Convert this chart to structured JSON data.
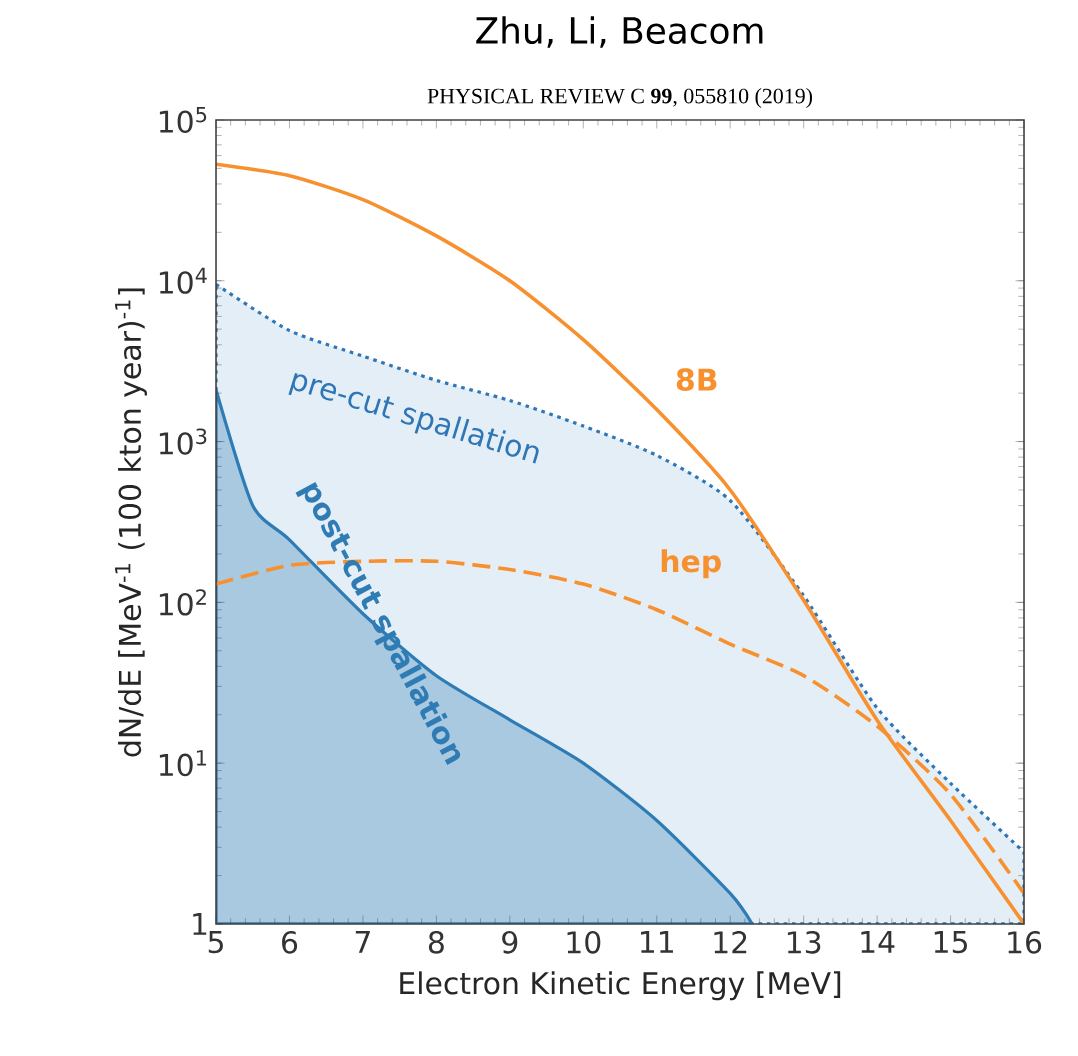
{
  "chart_data": {
    "type": "line",
    "title": "Zhu, Li, Beacom",
    "subtitle": "PHYSICAL REVIEW C **99**, 055810 (2019)",
    "xlabel": "Electron Kinetic Energy [MeV]",
    "ylabel": "dN/dE [MeV$^{-1}$ (100 kton year)$^{-1}$]",
    "log": "y",
    "xlim": [
      5,
      16
    ],
    "ylim": [
      1,
      100000
    ],
    "xticks": [
      5,
      6,
      7,
      8,
      9,
      10,
      11,
      12,
      13,
      14,
      15,
      16
    ],
    "yticks": [
      1,
      {
        "value": 10,
        "label": "10$^{1}$"
      },
      {
        "value": 100,
        "label": "10$^{2}$"
      },
      {
        "value": 1000,
        "label": "10$^{3}$"
      },
      {
        "value": 10000,
        "label": "10$^{4}$"
      },
      {
        "value": 100000,
        "label": "10$^{5}$"
      }
    ],
    "grid": false,
    "marker": "none",
    "series": [
      {
        "name": "pre-cut spallation",
        "type": "area",
        "color": "#e4eef7",
        "line_style": "dotted",
        "x": [
          5,
          6,
          7,
          8,
          9,
          10,
          11,
          12,
          13,
          14,
          15,
          16
        ],
        "values": [
          9500,
          4900,
          3400,
          2400,
          1800,
          1250,
          820,
          430,
          110,
          22,
          7.5,
          2.8
        ]
      },
      {
        "name": "post-cut spallation",
        "type": "area",
        "color": "#a9c9e1",
        "line_style": "solid",
        "x": [
          5,
          5.5,
          6,
          7,
          8,
          9,
          10,
          11,
          12,
          12.3
        ],
        "values": [
          2100,
          400,
          245,
          85,
          35,
          18.6,
          10,
          4.4,
          1.55,
          1
        ]
      },
      {
        "name": "hep",
        "color": "#f7902f",
        "line_style": "dashed",
        "x": [
          5,
          6,
          7,
          8,
          9,
          10,
          11,
          12,
          13,
          14,
          15,
          16
        ],
        "values": [
          130,
          170,
          180,
          180,
          160,
          130,
          90,
          55,
          35,
          17,
          6.4,
          1.55
        ]
      },
      {
        "name": "8B",
        "color": "#f7902f",
        "line_style": "solid",
        "x": [
          5,
          6,
          7,
          8,
          9,
          10,
          11,
          12,
          13,
          14,
          15,
          16
        ],
        "values": [
          53000,
          45000,
          32000,
          19000,
          10000,
          4300,
          1580,
          500,
          103,
          18.5,
          4.4,
          1
        ]
      }
    ]
  }
}
